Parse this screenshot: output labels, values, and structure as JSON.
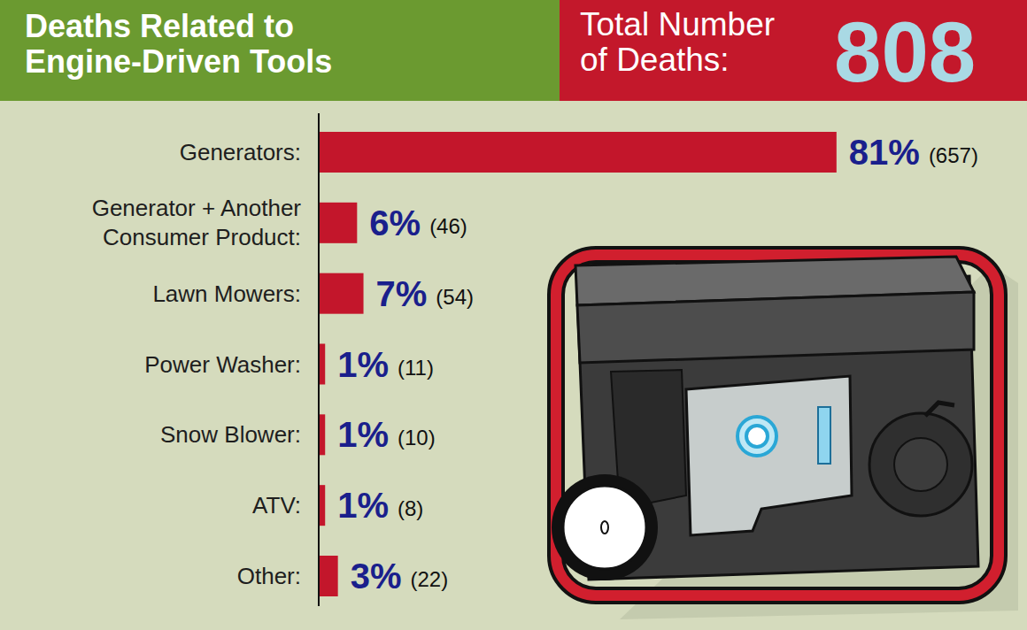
{
  "chart_data": {
    "type": "bar",
    "orientation": "horizontal",
    "title": "Deaths Related to\nEngine-Driven Tools",
    "total_label": "Total Number\nof Deaths:",
    "total": 808,
    "categories": [
      "Generators:",
      "Generator + Another\nConsumer Product:",
      "Lawn Mowers:",
      "Power Washer:",
      "Snow Blower:",
      "ATV:",
      "Other:"
    ],
    "values": [
      81,
      6,
      7,
      1,
      1,
      1,
      3
    ],
    "value_labels": [
      "81%",
      "6%",
      "7%",
      "1%",
      "1%",
      "1%",
      "3%"
    ],
    "counts": [
      657,
      46,
      54,
      11,
      10,
      8,
      22
    ],
    "count_labels": [
      "(657)",
      "(46)",
      "(54)",
      "(11)",
      "(10)",
      "(8)",
      "(22)"
    ],
    "color": "#c3162b",
    "xlim": [
      0,
      100
    ],
    "data_labels": true,
    "tick_labels": "y",
    "grid": false
  }
}
